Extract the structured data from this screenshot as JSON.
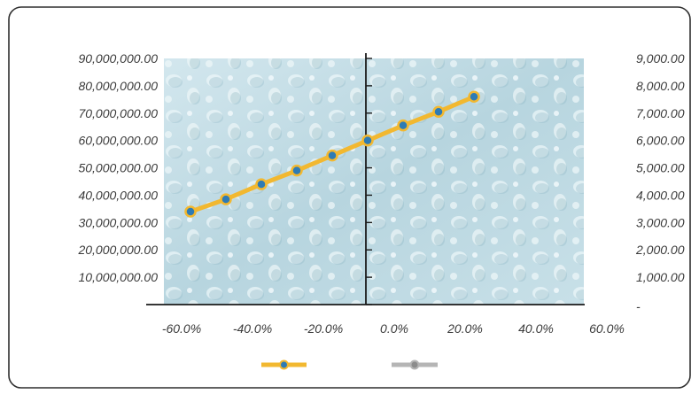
{
  "chart_data": {
    "type": "line",
    "title": "",
    "xlabel": "",
    "ylabel": "",
    "x_ticks": [
      "-60.0%",
      "-40.0%",
      "-20.0%",
      "0.0%",
      "20.0%",
      "40.0%",
      "60.0%"
    ],
    "y_left_ticks": [
      "90,000,000.00",
      "80,000,000.00",
      "70,000,000.00",
      "60,000,000.00",
      "50,000,000.00",
      "40,000,000.00",
      "30,000,000.00",
      "20,000,000.00",
      "10,000,000.00"
    ],
    "y_right_ticks": [
      "9,000.00",
      "8,000.00",
      "7,000.00",
      "6,000.00",
      "5,000.00",
      "4,000.00",
      "3,000.00",
      "2,000.00",
      "1,000.00",
      "-"
    ],
    "xlim": [
      -0.6,
      0.6
    ],
    "ylim_left": [
      0,
      90000000
    ],
    "ylim_right": [
      0,
      9000
    ],
    "grid": false,
    "background": "water-droplets-texture",
    "series": [
      {
        "color": "#f2b830",
        "marker_color": "#2e7bb4",
        "axis": "right",
        "x": [
          -0.5,
          -0.4,
          -0.3,
          -0.2,
          -0.1,
          0.0,
          0.1,
          0.2,
          0.3
        ],
        "values": [
          3400,
          3850,
          4400,
          4900,
          5450,
          6000,
          6550,
          7050,
          7600
        ]
      },
      {
        "color": "#b5b5b5",
        "marker_color": "#8c8c8c",
        "axis": "left",
        "x": [],
        "values": []
      }
    ],
    "legend_position": "bottom"
  }
}
